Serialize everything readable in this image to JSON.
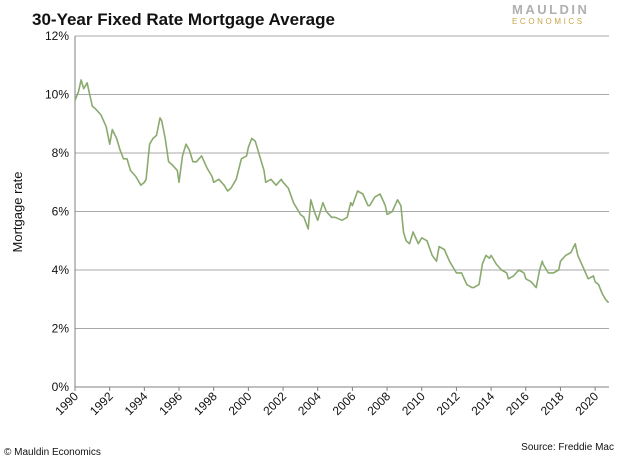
{
  "brand": {
    "logo_top": "MAULDIN",
    "logo_bottom": "ECONOMICS"
  },
  "footer": {
    "copyright": "© Mauldin Economics",
    "source": "Source: Freddie Mac"
  },
  "colors": {
    "series": "#8aaa6f",
    "grid": "#a8a8a8",
    "axis": "#808080",
    "text": "#111111"
  },
  "chart_data": {
    "type": "line",
    "title": "30-Year Fixed Rate Mortgage Average",
    "xlabel": "",
    "ylabel": "Mortgage rate",
    "xlim": [
      1990,
      2020.8
    ],
    "ylim": [
      0,
      12
    ],
    "grid": true,
    "y_ticks": [
      "0%",
      "2%",
      "4%",
      "6%",
      "8%",
      "10%",
      "12%"
    ],
    "x_ticks": [
      "1990",
      "1992",
      "1994",
      "1996",
      "1998",
      "2000",
      "2002",
      "2004",
      "2006",
      "2008",
      "2010",
      "2012",
      "2014",
      "2016",
      "2018",
      "2020"
    ],
    "series": [
      {
        "x": [
          1990.0,
          1990.2,
          1990.35,
          1990.5,
          1990.7,
          1990.85,
          1991.0,
          1991.2,
          1991.5,
          1991.8,
          1992.0,
          1992.15,
          1992.4,
          1992.6,
          1992.8,
          1993.0,
          1993.2,
          1993.5,
          1993.8,
          1994.0,
          1994.1,
          1994.3,
          1994.5,
          1994.7,
          1994.9,
          1995.0,
          1995.2,
          1995.4,
          1995.6,
          1995.9,
          1996.0,
          1996.2,
          1996.4,
          1996.6,
          1996.8,
          1997.0,
          1997.3,
          1997.6,
          1997.9,
          1998.0,
          1998.3,
          1998.6,
          1998.8,
          1999.0,
          1999.3,
          1999.6,
          1999.9,
          2000.0,
          2000.2,
          2000.4,
          2000.7,
          2000.9,
          2001.0,
          2001.3,
          2001.6,
          2001.9,
          2002.0,
          2002.3,
          2002.6,
          2002.9,
          2003.0,
          2003.2,
          2003.45,
          2003.6,
          2003.8,
          2004.0,
          2004.3,
          2004.5,
          2004.8,
          2005.0,
          2005.4,
          2005.7,
          2005.9,
          2006.0,
          2006.3,
          2006.6,
          2006.9,
          2007.0,
          2007.3,
          2007.6,
          2007.9,
          2008.0,
          2008.3,
          2008.6,
          2008.8,
          2008.95,
          2009.1,
          2009.3,
          2009.5,
          2009.8,
          2010.0,
          2010.3,
          2010.6,
          2010.85,
          2011.0,
          2011.3,
          2011.6,
          2011.9,
          2012.0,
          2012.3,
          2012.6,
          2012.9,
          2013.0,
          2013.3,
          2013.5,
          2013.7,
          2013.9,
          2014.0,
          2014.3,
          2014.6,
          2014.9,
          2015.0,
          2015.3,
          2015.6,
          2015.9,
          2016.0,
          2016.3,
          2016.6,
          2016.8,
          2016.95,
          2017.0,
          2017.3,
          2017.6,
          2017.9,
          2018.0,
          2018.3,
          2018.6,
          2018.85,
          2019.0,
          2019.3,
          2019.6,
          2019.9,
          2020.0,
          2020.2,
          2020.4,
          2020.6,
          2020.75
        ],
        "y": [
          9.8,
          10.1,
          10.5,
          10.2,
          10.4,
          10.0,
          9.6,
          9.5,
          9.3,
          8.9,
          8.3,
          8.8,
          8.5,
          8.1,
          7.8,
          7.8,
          7.4,
          7.2,
          6.9,
          7.0,
          7.1,
          8.3,
          8.5,
          8.6,
          9.2,
          9.1,
          8.5,
          7.7,
          7.6,
          7.4,
          7.0,
          7.9,
          8.3,
          8.1,
          7.7,
          7.7,
          7.9,
          7.5,
          7.2,
          7.0,
          7.1,
          6.9,
          6.7,
          6.8,
          7.1,
          7.8,
          7.9,
          8.2,
          8.5,
          8.4,
          7.8,
          7.4,
          7.0,
          7.1,
          6.9,
          7.1,
          7.0,
          6.8,
          6.3,
          6.0,
          5.9,
          5.8,
          5.4,
          6.4,
          6.0,
          5.7,
          6.3,
          6.0,
          5.8,
          5.8,
          5.7,
          5.8,
          6.3,
          6.2,
          6.7,
          6.6,
          6.2,
          6.2,
          6.5,
          6.6,
          6.2,
          5.9,
          6.0,
          6.4,
          6.2,
          5.3,
          5.0,
          4.9,
          5.3,
          4.9,
          5.1,
          5.0,
          4.5,
          4.3,
          4.8,
          4.7,
          4.3,
          4.0,
          3.9,
          3.9,
          3.5,
          3.4,
          3.4,
          3.5,
          4.2,
          4.5,
          4.4,
          4.5,
          4.2,
          4.0,
          3.9,
          3.7,
          3.8,
          4.0,
          3.9,
          3.7,
          3.6,
          3.4,
          4.0,
          4.3,
          4.2,
          3.9,
          3.9,
          4.0,
          4.3,
          4.5,
          4.6,
          4.9,
          4.5,
          4.1,
          3.7,
          3.8,
          3.6,
          3.5,
          3.2,
          3.0,
          2.9
        ]
      }
    ]
  }
}
